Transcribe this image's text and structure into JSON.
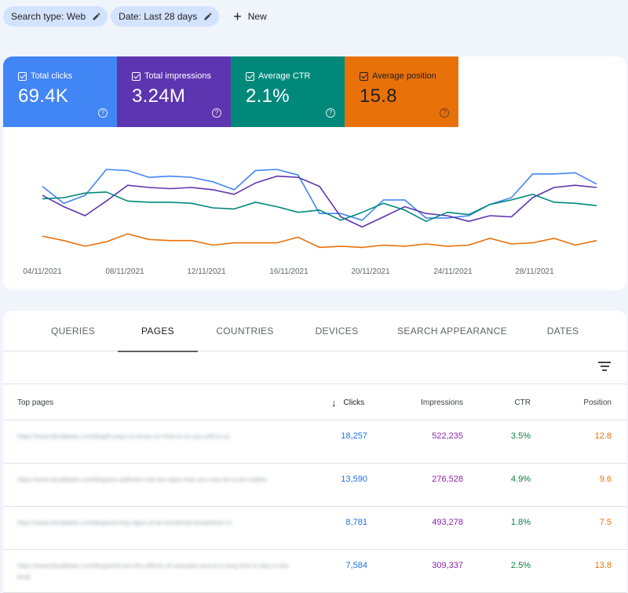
{
  "filters": {
    "chips": [
      {
        "label": "Search type: Web"
      },
      {
        "label": "Date: Last 28 days"
      }
    ],
    "new_label": "New"
  },
  "metrics": [
    {
      "label": "Total clicks",
      "value": "69.4K",
      "color": "#4285f4"
    },
    {
      "label": "Total impressions",
      "value": "3.24M",
      "color": "#5e35b1"
    },
    {
      "label": "Average CTR",
      "value": "2.1%",
      "color": "#00897b"
    },
    {
      "label": "Average position",
      "value": "15.8",
      "color": "#e8710a"
    }
  ],
  "chart_data": {
    "type": "line",
    "x_tick_labels": [
      "04/11/2021",
      "08/11/2021",
      "12/11/2021",
      "16/11/2021",
      "20/11/2021",
      "24/11/2021",
      "28/11/2021"
    ],
    "grid": false,
    "series": [
      {
        "name": "Total clicks",
        "color": "#4285f4",
        "values": [
          0.6,
          0.45,
          0.52,
          0.75,
          0.74,
          0.68,
          0.69,
          0.68,
          0.64,
          0.57,
          0.74,
          0.75,
          0.7,
          0.36,
          0.36,
          0.3,
          0.48,
          0.48,
          0.32,
          0.32,
          0.34,
          0.44,
          0.5,
          0.71,
          0.71,
          0.72,
          0.62
        ]
      },
      {
        "name": "Total impressions",
        "color": "#5e35b1",
        "values": [
          0.52,
          0.42,
          0.34,
          0.47,
          0.61,
          0.59,
          0.58,
          0.59,
          0.57,
          0.53,
          0.63,
          0.69,
          0.68,
          0.6,
          0.33,
          0.24,
          0.33,
          0.42,
          0.36,
          0.34,
          0.29,
          0.34,
          0.33,
          0.5,
          0.59,
          0.61,
          0.59
        ]
      },
      {
        "name": "Average CTR",
        "color": "#00897b",
        "values": [
          0.49,
          0.5,
          0.54,
          0.55,
          0.47,
          0.46,
          0.46,
          0.45,
          0.41,
          0.4,
          0.46,
          0.42,
          0.37,
          0.39,
          0.3,
          0.37,
          0.45,
          0.39,
          0.29,
          0.37,
          0.35,
          0.44,
          0.48,
          0.53,
          0.46,
          0.45,
          0.43
        ]
      },
      {
        "name": "Average position",
        "color": "#e8710a",
        "values": [
          0.16,
          0.12,
          0.07,
          0.11,
          0.18,
          0.13,
          0.12,
          0.12,
          0.08,
          0.1,
          0.1,
          0.1,
          0.15,
          0.06,
          0.07,
          0.06,
          0.08,
          0.07,
          0.09,
          0.07,
          0.08,
          0.14,
          0.09,
          0.1,
          0.14,
          0.08,
          0.12
        ]
      }
    ]
  },
  "tabs": [
    "QUERIES",
    "PAGES",
    "COUNTRIES",
    "DEVICES",
    "SEARCH APPEARANCE",
    "DATES"
  ],
  "active_tab": "PAGES",
  "table": {
    "headers": {
      "pages": "Top pages",
      "clicks": "Clicks",
      "impressions": "Impressions",
      "ctr": "CTR",
      "position": "Position"
    },
    "rows": [
      {
        "url": "https://www.tbcabbate.com/blog/5-ways-to-know-on-how-to-ve-you-will-to-us",
        "clicks": "18,257",
        "impressions": "522,235",
        "ctr": "3.5%",
        "position": "12.8"
      },
      {
        "url": "https://www.tbcabbate.com/blog/are-addiction-top-ten-signs-that-you-may-be-a-sex-addict",
        "clicks": "13,590",
        "impressions": "276,528",
        "ctr": "4.9%",
        "position": "9.6"
      },
      {
        "url": "https://www.tbcabbate.com/blog/warning-signs-of-an-emotional-breakdown-in",
        "clicks": "8,781",
        "impressions": "493,278",
        "ctr": "1.8%",
        "position": "7.5"
      },
      {
        "url": "https://www.tbcabbate.com/blog/what-are-the-effects-of-cannabis-and-to-a-long-time-in-day-in-the-body",
        "clicks": "7,584",
        "impressions": "309,337",
        "ctr": "2.5%",
        "position": "13.8"
      }
    ]
  }
}
